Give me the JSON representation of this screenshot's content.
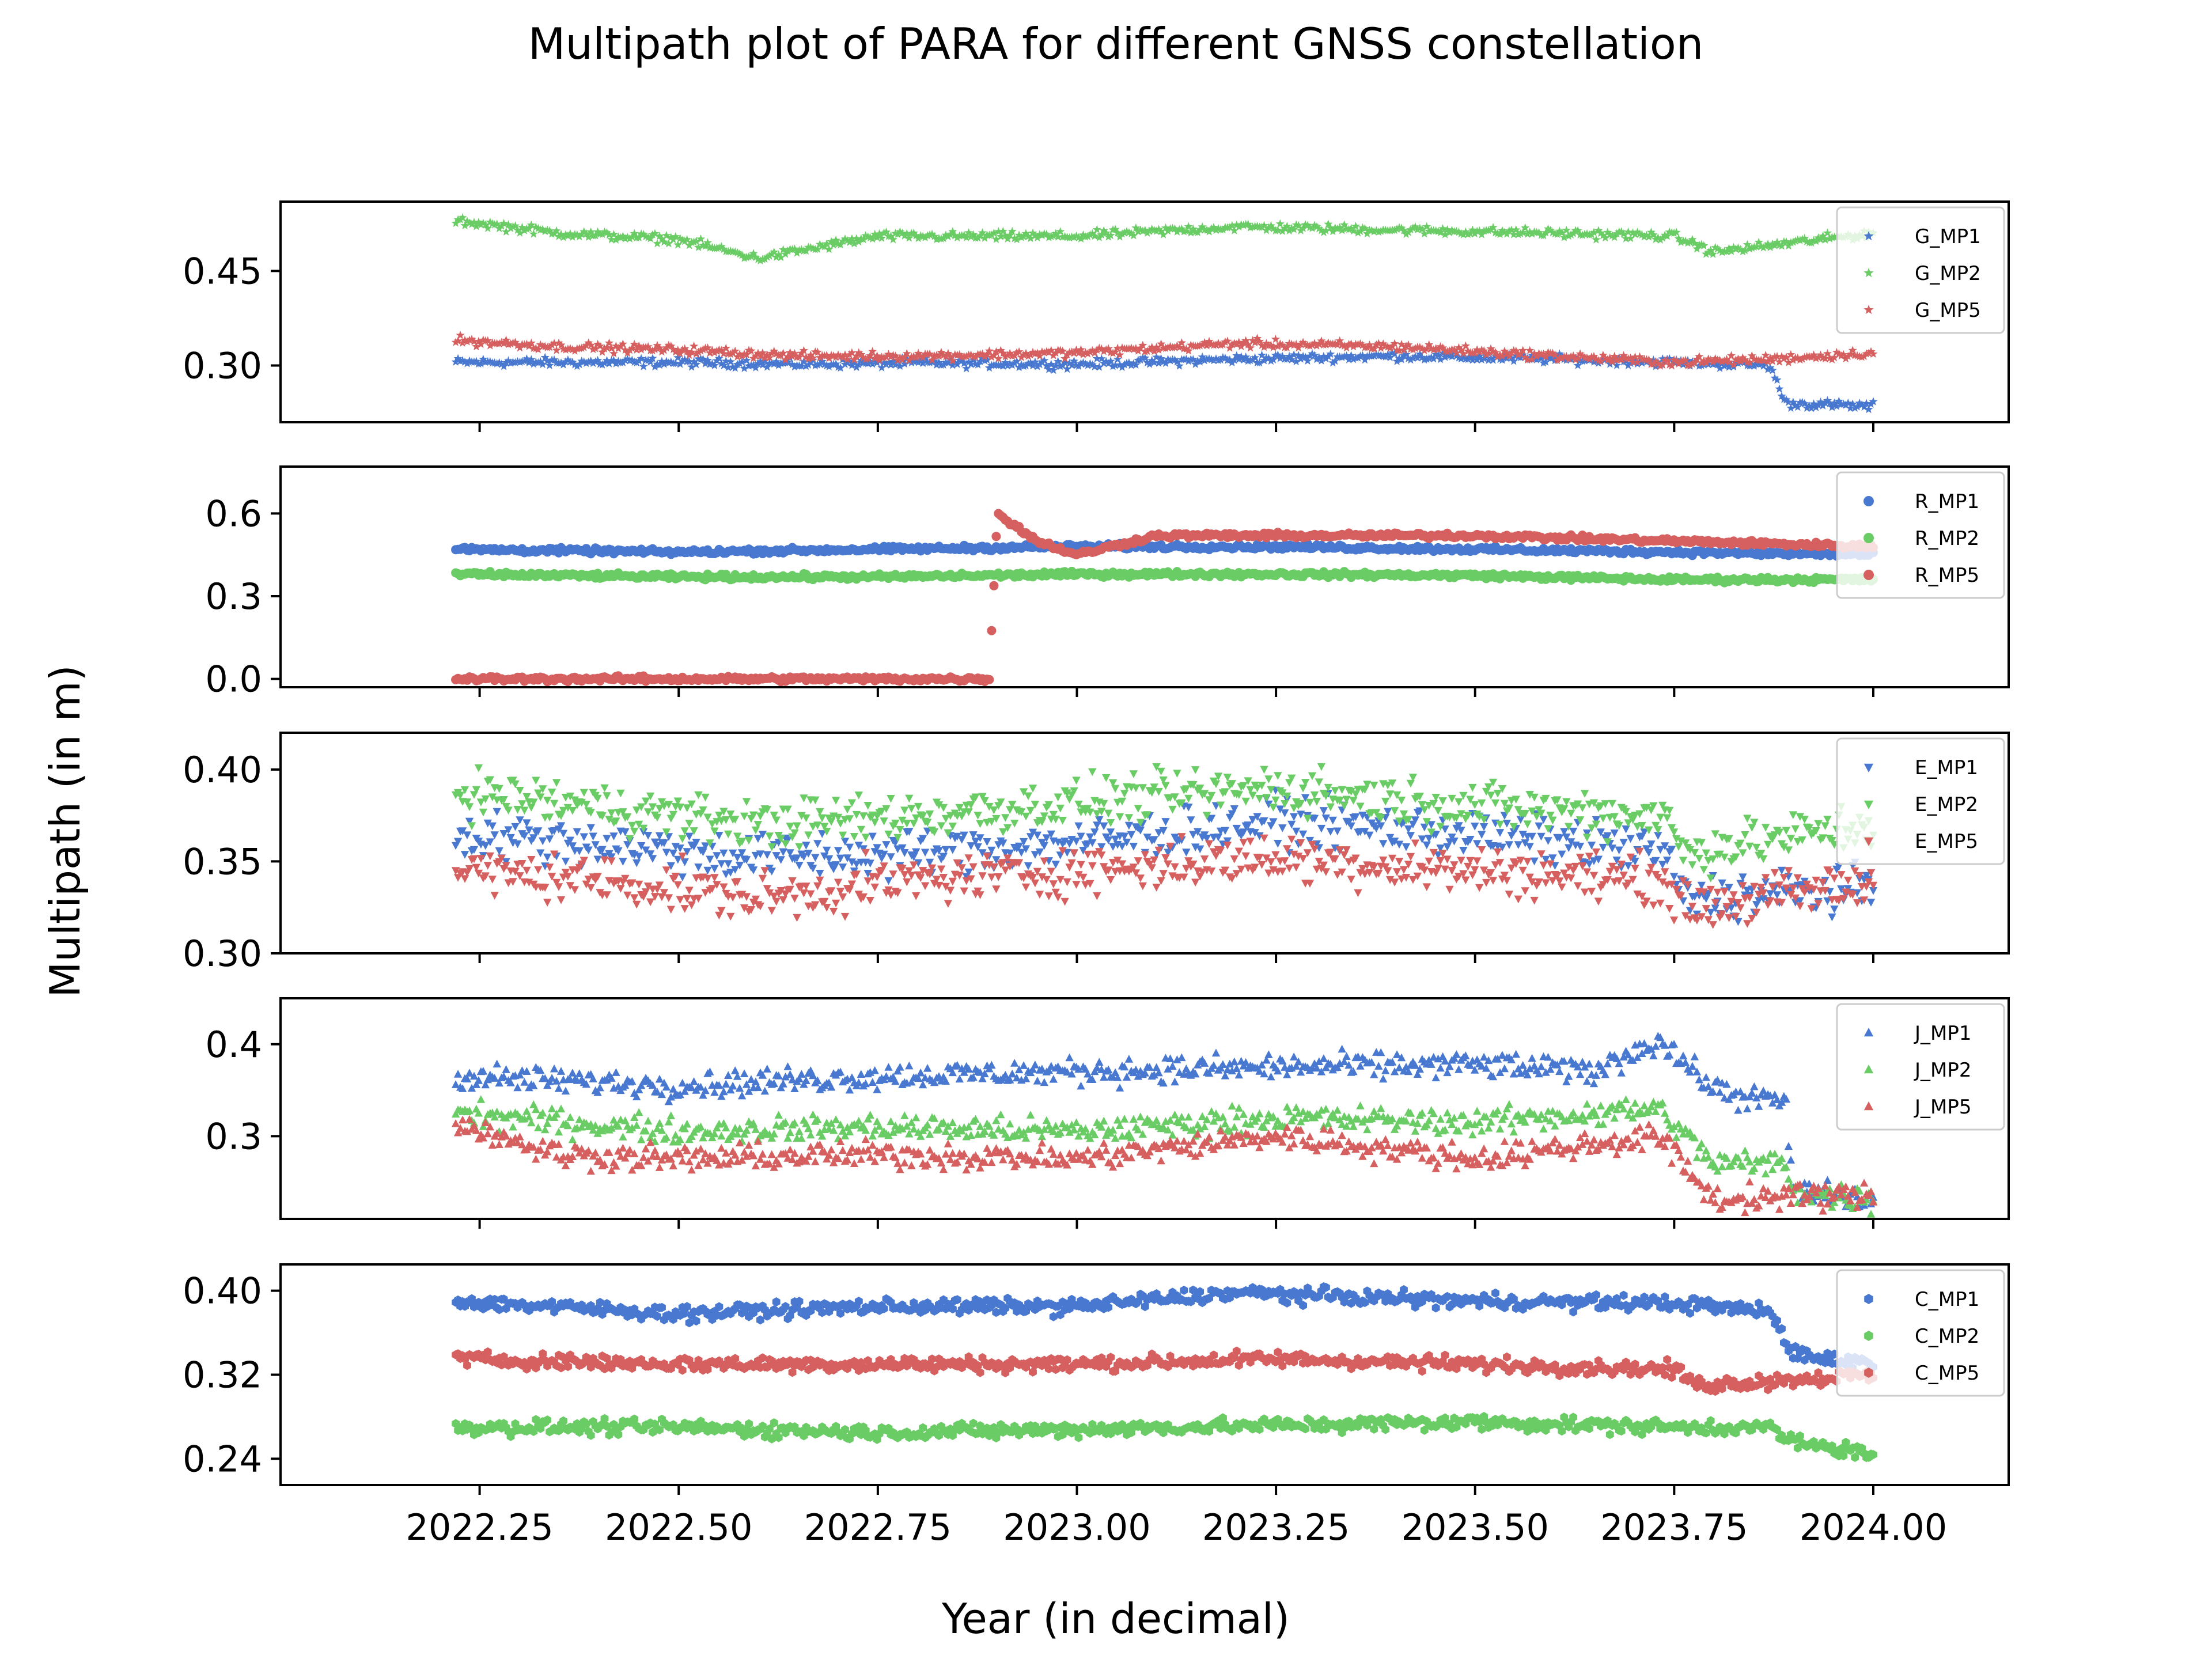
{
  "chart_data": {
    "type": "scatter",
    "title": "Multipath plot of PARA for different GNSS constellation",
    "xlabel": "Year (in decimal)",
    "ylabel": "Multipath (in m)",
    "xlim": [
      2022.0,
      2024.17
    ],
    "x_ticks": [
      2022.25,
      2022.5,
      2022.75,
      2023.0,
      2023.25,
      2023.5,
      2023.75,
      2024.0
    ],
    "x_tick_labels": [
      "2022.25",
      "2022.50",
      "2022.75",
      "2023.00",
      "2023.25",
      "2023.50",
      "2023.75",
      "2024.00"
    ],
    "x_data_range": [
      2022.22,
      2024.0
    ],
    "legend_position": "upper right (each panel)",
    "grid": false,
    "colors": {
      "MP1": "#4878d0",
      "MP2": "#6acc64",
      "MP5": "#d65f5f"
    },
    "panels": [
      {
        "constellation": "G",
        "marker": "star",
        "ylim": [
          0.21,
          0.56
        ],
        "y_ticks": [
          0.3,
          0.45
        ],
        "y_tick_labels": [
          "0.30",
          "0.45"
        ],
        "series": [
          {
            "name": "G_MP1",
            "color": "#4878d0",
            "x": [
              2022.22,
              2022.35,
              2022.5,
              2022.65,
              2022.8,
              2023.0,
              2023.2,
              2023.4,
              2023.6,
              2023.75,
              2023.87,
              2023.89,
              2024.0
            ],
            "y": [
              0.305,
              0.305,
              0.305,
              0.302,
              0.304,
              0.302,
              0.31,
              0.315,
              0.31,
              0.305,
              0.3,
              0.24,
              0.235
            ]
          },
          {
            "name": "G_MP2",
            "color": "#6acc64",
            "x": [
              2022.22,
              2022.35,
              2022.5,
              2022.6,
              2022.75,
              2023.0,
              2023.2,
              2023.4,
              2023.6,
              2023.75,
              2023.8,
              2024.0
            ],
            "y": [
              0.53,
              0.51,
              0.5,
              0.47,
              0.505,
              0.505,
              0.52,
              0.515,
              0.51,
              0.505,
              0.48,
              0.51
            ]
          },
          {
            "name": "G_MP5",
            "color": "#d65f5f",
            "x": [
              2022.22,
              2022.35,
              2022.5,
              2022.65,
              2022.8,
              2023.0,
              2023.2,
              2023.4,
              2023.6,
              2023.75,
              2023.87,
              2024.0
            ],
            "y": [
              0.34,
              0.33,
              0.325,
              0.315,
              0.315,
              0.32,
              0.335,
              0.33,
              0.315,
              0.305,
              0.31,
              0.32
            ]
          }
        ]
      },
      {
        "constellation": "R",
        "marker": "circle",
        "ylim": [
          -0.03,
          0.77
        ],
        "y_ticks": [
          0.0,
          0.3,
          0.6
        ],
        "y_tick_labels": [
          "0.0",
          "0.3",
          "0.6"
        ],
        "series": [
          {
            "name": "R_MP1",
            "color": "#4878d0",
            "x": [
              2022.22,
              2022.5,
              2022.75,
              2023.0,
              2023.25,
              2023.5,
              2023.75,
              2024.0
            ],
            "y": [
              0.47,
              0.46,
              0.47,
              0.48,
              0.48,
              0.47,
              0.46,
              0.45
            ]
          },
          {
            "name": "R_MP2",
            "color": "#6acc64",
            "x": [
              2022.22,
              2022.5,
              2022.75,
              2023.0,
              2023.25,
              2023.5,
              2023.75,
              2024.0
            ],
            "y": [
              0.38,
              0.37,
              0.37,
              0.38,
              0.38,
              0.375,
              0.36,
              0.36
            ]
          },
          {
            "name": "R_MP5",
            "color": "#d65f5f",
            "x": [
              2022.22,
              2022.5,
              2022.89,
              2022.9,
              2022.95,
              2023.0,
              2023.1,
              2023.3,
              2023.5,
              2023.75,
              2024.0
            ],
            "y": [
              0.0,
              0.0,
              0.0,
              0.6,
              0.5,
              0.45,
              0.52,
              0.52,
              0.52,
              0.5,
              0.48
            ]
          }
        ]
      },
      {
        "constellation": "E",
        "marker": "triangle_down",
        "ylim": [
          0.3,
          0.42
        ],
        "y_ticks": [
          0.3,
          0.35,
          0.4
        ],
        "y_tick_labels": [
          "0.30",
          "0.35",
          "0.40"
        ],
        "series": [
          {
            "name": "E_MP1",
            "color": "#4878d0",
            "x": [
              2022.22,
              2022.4,
              2022.6,
              2022.8,
              2023.0,
              2023.25,
              2023.5,
              2023.74,
              2023.76,
              2024.0
            ],
            "y": [
              0.365,
              0.36,
              0.352,
              0.355,
              0.36,
              0.372,
              0.365,
              0.355,
              0.33,
              0.335
            ]
          },
          {
            "name": "E_MP2",
            "color": "#6acc64",
            "x": [
              2022.22,
              2022.4,
              2022.6,
              2022.8,
              2023.0,
              2023.25,
              2023.5,
              2023.74,
              2023.76,
              2024.0
            ],
            "y": [
              0.388,
              0.38,
              0.37,
              0.375,
              0.382,
              0.39,
              0.38,
              0.375,
              0.355,
              0.37
            ]
          },
          {
            "name": "E_MP5",
            "color": "#d65f5f",
            "x": [
              2022.22,
              2022.4,
              2022.6,
              2022.8,
              2023.0,
              2023.25,
              2023.5,
              2023.74,
              2023.76,
              2024.0
            ],
            "y": [
              0.345,
              0.34,
              0.33,
              0.34,
              0.345,
              0.352,
              0.345,
              0.34,
              0.325,
              0.338
            ]
          }
        ]
      },
      {
        "constellation": "J",
        "marker": "triangle_up",
        "ylim": [
          0.21,
          0.45
        ],
        "y_ticks": [
          0.3,
          0.4
        ],
        "y_tick_labels": [
          "0.3",
          "0.4"
        ],
        "series": [
          {
            "name": "J_MP1",
            "color": "#4878d0",
            "x": [
              2022.22,
              2022.5,
              2022.75,
              2023.0,
              2023.25,
              2023.5,
              2023.65,
              2023.73,
              2023.8,
              2023.89,
              2023.9,
              2024.0
            ],
            "y": [
              0.365,
              0.355,
              0.365,
              0.37,
              0.375,
              0.378,
              0.37,
              0.405,
              0.35,
              0.335,
              0.24,
              0.23
            ]
          },
          {
            "name": "J_MP2",
            "color": "#6acc64",
            "x": [
              2022.22,
              2022.5,
              2022.75,
              2023.0,
              2023.25,
              2023.5,
              2023.73,
              2023.8,
              2023.89,
              2023.9,
              2024.0
            ],
            "y": [
              0.325,
              0.305,
              0.31,
              0.305,
              0.32,
              0.315,
              0.33,
              0.27,
              0.27,
              0.24,
              0.23
            ]
          },
          {
            "name": "J_MP5",
            "color": "#d65f5f",
            "x": [
              2022.22,
              2022.35,
              2022.5,
              2022.75,
              2023.0,
              2023.25,
              2023.5,
              2023.73,
              2023.8,
              2023.9,
              2024.0
            ],
            "y": [
              0.315,
              0.28,
              0.275,
              0.28,
              0.275,
              0.3,
              0.275,
              0.3,
              0.23,
              0.235,
              0.235
            ]
          }
        ]
      },
      {
        "constellation": "C",
        "marker": "hexagon",
        "ylim": [
          0.215,
          0.425
        ],
        "y_ticks": [
          0.24,
          0.32,
          0.4
        ],
        "y_tick_labels": [
          "0.24",
          "0.32",
          "0.40"
        ],
        "series": [
          {
            "name": "C_MP1",
            "color": "#4878d0",
            "x": [
              2022.22,
              2022.5,
              2022.75,
              2023.0,
              2023.2,
              2023.5,
              2023.75,
              2023.87,
              2023.9,
              2024.0
            ],
            "y": [
              0.39,
              0.378,
              0.385,
              0.385,
              0.398,
              0.39,
              0.388,
              0.38,
              0.34,
              0.33
            ]
          },
          {
            "name": "C_MP2",
            "color": "#6acc64",
            "x": [
              2022.22,
              2022.5,
              2022.75,
              2023.0,
              2023.25,
              2023.5,
              2023.75,
              2023.87,
              2023.9,
              2024.0
            ],
            "y": [
              0.27,
              0.27,
              0.265,
              0.268,
              0.272,
              0.275,
              0.27,
              0.27,
              0.255,
              0.245
            ]
          },
          {
            "name": "C_MP5",
            "color": "#d65f5f",
            "x": [
              2022.22,
              2022.5,
              2022.75,
              2023.0,
              2023.25,
              2023.5,
              2023.75,
              2023.78,
              2024.0
            ],
            "y": [
              0.335,
              0.33,
              0.33,
              0.33,
              0.335,
              0.33,
              0.325,
              0.31,
              0.32
            ]
          }
        ]
      }
    ]
  }
}
